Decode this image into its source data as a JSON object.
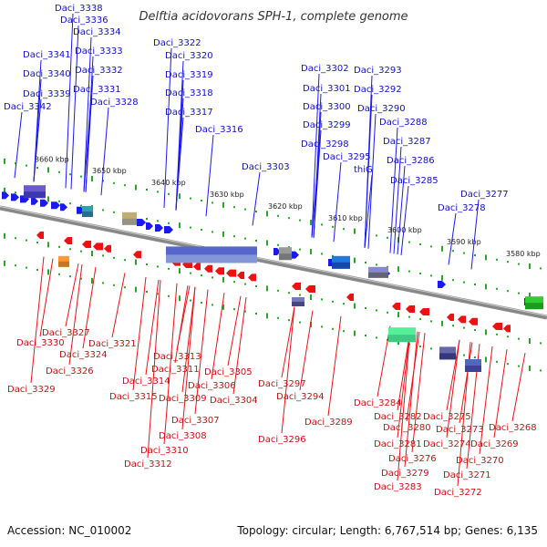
{
  "title": "Delftia acidovorans SPH-1, complete genome",
  "footer": {
    "accession": "Accession: NC_010002",
    "stats": "Topology: circular; Length: 6,767,514 bp; Genes: 6,135"
  },
  "scale_labels": [
    "3660 kbp",
    "3650 kbp",
    "3640 kbp",
    "3630 kbp",
    "3620 kbp",
    "3610 kbp",
    "3600 kbp",
    "3590 kbp",
    "3580 kbp"
  ],
  "colors": {
    "forward": "#1a1aee",
    "reverse": "#ee1111",
    "forward_label": "#1010cc",
    "reverse_label": "#cc1010",
    "backbone": "#888888",
    "tick": "#22aa22"
  },
  "top_labels": [
    "Daci_3338",
    "Daci_3336",
    "Daci_3334",
    "Daci_3341",
    "Daci_3333",
    "Daci_3340",
    "Daci_3332",
    "Daci_3339",
    "Daci_3331",
    "Daci_3342",
    "Daci_3328",
    "Daci_3322",
    "Daci_3320",
    "Daci_3319",
    "Daci_3318",
    "Daci_3317",
    "Daci_3316",
    "Daci_3302",
    "Daci_3293",
    "Daci_3301",
    "Daci_3292",
    "Daci_3300",
    "Daci_3290",
    "Daci_3299",
    "Daci_3288",
    "Daci_3298",
    "Daci_3287",
    "Daci_3303",
    "Daci_3295",
    "Daci_3286",
    "thiG",
    "Daci_3285",
    "Daci_3277",
    "Daci_3278"
  ],
  "bottom_labels": [
    "Daci_3330",
    "Daci_3327",
    "Daci_3324",
    "Daci_3321",
    "Daci_3326",
    "Daci_3329",
    "Daci_3313",
    "Daci_3311",
    "Daci_3314",
    "Daci_3305",
    "Daci_3315",
    "Daci_3309",
    "Daci_3306",
    "Daci_3304",
    "Daci_3307",
    "Daci_3308",
    "Daci_3310",
    "Daci_3312",
    "Daci_3297",
    "Daci_3294",
    "Daci_3296",
    "Daci_3289",
    "Daci_3284",
    "Daci_3282",
    "Daci_3275",
    "Daci_3280",
    "Daci_3273",
    "Daci_3268",
    "Daci_3281",
    "Daci_3274",
    "Daci_3269",
    "Daci_3276",
    "Daci_3270",
    "Daci_3279",
    "Daci_3271",
    "Daci_3283",
    "Daci_3272"
  ]
}
